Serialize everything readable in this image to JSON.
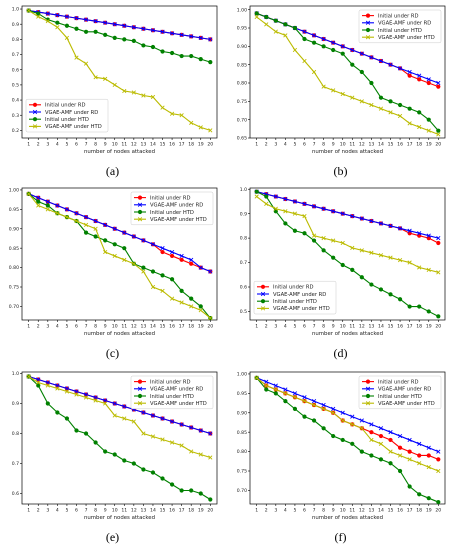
{
  "chart_data": [
    {
      "caption": "(a)",
      "type": "line",
      "xlabel": "number of nodes attacked",
      "x": [
        1,
        2,
        3,
        4,
        5,
        6,
        7,
        8,
        9,
        10,
        11,
        12,
        13,
        14,
        15,
        16,
        17,
        18,
        19,
        20
      ],
      "ylim": [
        0.15,
        1.02
      ],
      "yticks": [
        "0.2",
        "0.3",
        "0.4",
        "0.5",
        "0.6",
        "0.7",
        "0.8",
        "0.9",
        "1.0"
      ],
      "legend_position": "lower-left",
      "series": [
        {
          "name": "Initial under RD",
          "color": "#ff0000",
          "marker": "circle",
          "values": [
            0.99,
            0.98,
            0.97,
            0.96,
            0.95,
            0.94,
            0.93,
            0.92,
            0.91,
            0.9,
            0.89,
            0.88,
            0.87,
            0.86,
            0.85,
            0.84,
            0.83,
            0.82,
            0.81,
            0.8
          ]
        },
        {
          "name": "VGAE-AMF under RD",
          "color": "#0000ff",
          "marker": "x",
          "values": [
            0.99,
            0.98,
            0.97,
            0.96,
            0.95,
            0.94,
            0.93,
            0.92,
            0.91,
            0.9,
            0.89,
            0.88,
            0.87,
            0.86,
            0.85,
            0.84,
            0.83,
            0.82,
            0.81,
            0.8
          ]
        },
        {
          "name": "Initial under HTD",
          "color": "#008000",
          "marker": "circle",
          "values": [
            0.99,
            0.97,
            0.93,
            0.91,
            0.89,
            0.87,
            0.85,
            0.85,
            0.83,
            0.81,
            0.8,
            0.79,
            0.76,
            0.75,
            0.72,
            0.71,
            0.69,
            0.69,
            0.67,
            0.65
          ]
        },
        {
          "name": "VGAE-AMF under HTD",
          "color": "#bbbb00",
          "marker": "x",
          "values": [
            0.99,
            0.95,
            0.92,
            0.88,
            0.81,
            0.68,
            0.64,
            0.55,
            0.54,
            0.5,
            0.46,
            0.45,
            0.43,
            0.42,
            0.35,
            0.31,
            0.3,
            0.25,
            0.22,
            0.2
          ]
        }
      ]
    },
    {
      "caption": "(b)",
      "type": "line",
      "xlabel": "number of nodes attacked",
      "x": [
        1,
        2,
        3,
        4,
        5,
        6,
        7,
        8,
        9,
        10,
        11,
        12,
        13,
        14,
        15,
        16,
        17,
        18,
        19,
        20
      ],
      "ylim": [
        0.65,
        1.01
      ],
      "yticks": [
        "0.65",
        "0.70",
        "0.75",
        "0.80",
        "0.85",
        "0.90",
        "0.95",
        "1.00"
      ],
      "legend_position": "top-right",
      "series": [
        {
          "name": "Initial under RD",
          "color": "#ff0000",
          "marker": "circle",
          "values": [
            0.99,
            0.98,
            0.97,
            0.96,
            0.95,
            0.94,
            0.93,
            0.92,
            0.91,
            0.9,
            0.89,
            0.88,
            0.87,
            0.86,
            0.85,
            0.84,
            0.82,
            0.81,
            0.8,
            0.79
          ]
        },
        {
          "name": "VGAE-AMF under RD",
          "color": "#0000ff",
          "marker": "x",
          "values": [
            0.99,
            0.98,
            0.97,
            0.96,
            0.95,
            0.94,
            0.93,
            0.92,
            0.91,
            0.9,
            0.89,
            0.88,
            0.87,
            0.86,
            0.85,
            0.84,
            0.83,
            0.82,
            0.81,
            0.8
          ]
        },
        {
          "name": "Initial under HTD",
          "color": "#008000",
          "marker": "circle",
          "values": [
            0.99,
            0.98,
            0.97,
            0.96,
            0.95,
            0.92,
            0.91,
            0.9,
            0.89,
            0.88,
            0.85,
            0.83,
            0.8,
            0.76,
            0.75,
            0.74,
            0.73,
            0.72,
            0.7,
            0.67
          ]
        },
        {
          "name": "VGAE-AMF under HTD",
          "color": "#bbbb00",
          "marker": "x",
          "values": [
            0.98,
            0.96,
            0.94,
            0.93,
            0.89,
            0.86,
            0.83,
            0.79,
            0.78,
            0.77,
            0.76,
            0.75,
            0.74,
            0.73,
            0.72,
            0.71,
            0.69,
            0.68,
            0.67,
            0.66
          ]
        }
      ]
    },
    {
      "caption": "(c)",
      "type": "line",
      "xlabel": "number of nodes attacked",
      "x": [
        1,
        2,
        3,
        4,
        5,
        6,
        7,
        8,
        9,
        10,
        11,
        12,
        13,
        14,
        15,
        16,
        17,
        18,
        19,
        20
      ],
      "ylim": [
        0.665,
        1.005
      ],
      "yticks": [
        "0.70",
        "0.75",
        "0.80",
        "0.85",
        "0.90",
        "0.95",
        "1.00"
      ],
      "legend_position": "top-right",
      "series": [
        {
          "name": "Initial under RD",
          "color": "#ff0000",
          "marker": "circle",
          "values": [
            0.99,
            0.98,
            0.97,
            0.96,
            0.95,
            0.94,
            0.93,
            0.92,
            0.91,
            0.9,
            0.89,
            0.88,
            0.87,
            0.86,
            0.84,
            0.83,
            0.82,
            0.81,
            0.8,
            0.79
          ]
        },
        {
          "name": "VGAE-AMF under RD",
          "color": "#0000ff",
          "marker": "x",
          "values": [
            0.99,
            0.98,
            0.97,
            0.96,
            0.95,
            0.94,
            0.93,
            0.92,
            0.91,
            0.9,
            0.89,
            0.88,
            0.87,
            0.86,
            0.85,
            0.84,
            0.83,
            0.82,
            0.8,
            0.79
          ]
        },
        {
          "name": "Initial under HTD",
          "color": "#008000",
          "marker": "circle",
          "values": [
            0.99,
            0.97,
            0.96,
            0.94,
            0.93,
            0.92,
            0.89,
            0.88,
            0.87,
            0.86,
            0.85,
            0.81,
            0.8,
            0.79,
            0.78,
            0.77,
            0.74,
            0.72,
            0.7,
            0.67
          ]
        },
        {
          "name": "VGAE-AMF under HTD",
          "color": "#bbbb00",
          "marker": "x",
          "values": [
            0.99,
            0.96,
            0.95,
            0.94,
            0.93,
            0.92,
            0.91,
            0.9,
            0.84,
            0.83,
            0.82,
            0.81,
            0.79,
            0.75,
            0.74,
            0.72,
            0.71,
            0.7,
            0.69,
            0.67
          ]
        }
      ]
    },
    {
      "caption": "(d)",
      "type": "line",
      "xlabel": "number of nodes attacked",
      "x": [
        1,
        2,
        3,
        4,
        5,
        6,
        7,
        8,
        9,
        10,
        11,
        12,
        13,
        14,
        15,
        16,
        17,
        18,
        19,
        20
      ],
      "ylim": [
        0.465,
        1.005
      ],
      "yticks": [
        "0.5",
        "0.6",
        "0.7",
        "0.8",
        "0.9",
        "1.0"
      ],
      "legend_position": "lower-left",
      "series": [
        {
          "name": "Initial under RD",
          "color": "#ff0000",
          "marker": "circle",
          "values": [
            0.99,
            0.98,
            0.97,
            0.96,
            0.95,
            0.94,
            0.93,
            0.92,
            0.91,
            0.9,
            0.89,
            0.88,
            0.87,
            0.86,
            0.85,
            0.84,
            0.82,
            0.81,
            0.8,
            0.78
          ]
        },
        {
          "name": "VGAE-AMF under RD",
          "color": "#0000ff",
          "marker": "x",
          "values": [
            0.99,
            0.98,
            0.97,
            0.96,
            0.95,
            0.94,
            0.93,
            0.92,
            0.91,
            0.9,
            0.89,
            0.88,
            0.87,
            0.86,
            0.85,
            0.84,
            0.83,
            0.82,
            0.81,
            0.8
          ]
        },
        {
          "name": "Initial under HTD",
          "color": "#008000",
          "marker": "circle",
          "values": [
            0.99,
            0.97,
            0.91,
            0.86,
            0.83,
            0.82,
            0.79,
            0.75,
            0.72,
            0.69,
            0.67,
            0.64,
            0.61,
            0.59,
            0.57,
            0.55,
            0.52,
            0.52,
            0.5,
            0.48
          ]
        },
        {
          "name": "VGAE-AMF under HTD",
          "color": "#bbbb00",
          "marker": "x",
          "values": [
            0.97,
            0.94,
            0.92,
            0.91,
            0.9,
            0.89,
            0.81,
            0.8,
            0.79,
            0.78,
            0.76,
            0.75,
            0.74,
            0.73,
            0.72,
            0.71,
            0.7,
            0.68,
            0.67,
            0.66
          ]
        }
      ]
    },
    {
      "caption": "(e)",
      "type": "line",
      "xlabel": "number of nodes attacked",
      "x": [
        1,
        2,
        3,
        4,
        5,
        6,
        7,
        8,
        9,
        10,
        11,
        12,
        13,
        14,
        15,
        16,
        17,
        18,
        19,
        20
      ],
      "ylim": [
        0.565,
        1.005
      ],
      "yticks": [
        "0.6",
        "0.7",
        "0.8",
        "0.9",
        "1.0"
      ],
      "legend_position": "top-right",
      "series": [
        {
          "name": "Initial under RD",
          "color": "#ff0000",
          "marker": "circle",
          "values": [
            0.99,
            0.98,
            0.97,
            0.96,
            0.95,
            0.94,
            0.93,
            0.92,
            0.91,
            0.9,
            0.89,
            0.88,
            0.87,
            0.86,
            0.85,
            0.84,
            0.83,
            0.82,
            0.81,
            0.8
          ]
        },
        {
          "name": "VGAE-AMF under RD",
          "color": "#0000ff",
          "marker": "x",
          "values": [
            0.99,
            0.98,
            0.97,
            0.96,
            0.95,
            0.94,
            0.93,
            0.92,
            0.91,
            0.9,
            0.89,
            0.88,
            0.87,
            0.86,
            0.85,
            0.84,
            0.83,
            0.82,
            0.81,
            0.8
          ]
        },
        {
          "name": "Initial under HTD",
          "color": "#008000",
          "marker": "circle",
          "values": [
            0.99,
            0.96,
            0.9,
            0.87,
            0.85,
            0.81,
            0.8,
            0.77,
            0.74,
            0.73,
            0.71,
            0.7,
            0.68,
            0.67,
            0.65,
            0.63,
            0.61,
            0.61,
            0.6,
            0.58
          ]
        },
        {
          "name": "VGAE-AMF under HTD",
          "color": "#bbbb00",
          "marker": "x",
          "values": [
            0.99,
            0.97,
            0.96,
            0.95,
            0.94,
            0.93,
            0.92,
            0.91,
            0.9,
            0.86,
            0.85,
            0.84,
            0.8,
            0.79,
            0.78,
            0.77,
            0.76,
            0.74,
            0.73,
            0.72
          ]
        }
      ]
    },
    {
      "caption": "(f)",
      "type": "line",
      "xlabel": "number of nodes attacked",
      "x": [
        1,
        2,
        3,
        4,
        5,
        6,
        7,
        8,
        9,
        10,
        11,
        12,
        13,
        14,
        15,
        16,
        17,
        18,
        19,
        20
      ],
      "ylim": [
        0.665,
        1.005
      ],
      "yticks": [
        "0.70",
        "0.75",
        "0.80",
        "0.85",
        "0.90",
        "0.95",
        "1.00"
      ],
      "legend_position": "top-right",
      "series": [
        {
          "name": "Initial under RD",
          "color": "#ff0000",
          "marker": "circle",
          "values": [
            0.99,
            0.97,
            0.96,
            0.95,
            0.94,
            0.93,
            0.92,
            0.91,
            0.9,
            0.88,
            0.87,
            0.86,
            0.85,
            0.84,
            0.83,
            0.81,
            0.8,
            0.79,
            0.79,
            0.78
          ]
        },
        {
          "name": "VGAE-AMF under RD",
          "color": "#0000ff",
          "marker": "x",
          "values": [
            0.99,
            0.98,
            0.97,
            0.96,
            0.95,
            0.94,
            0.93,
            0.92,
            0.91,
            0.9,
            0.89,
            0.88,
            0.87,
            0.86,
            0.85,
            0.84,
            0.83,
            0.82,
            0.81,
            0.8
          ]
        },
        {
          "name": "Initial under HTD",
          "color": "#008000",
          "marker": "circle",
          "values": [
            0.99,
            0.96,
            0.95,
            0.93,
            0.91,
            0.89,
            0.88,
            0.86,
            0.84,
            0.83,
            0.82,
            0.8,
            0.79,
            0.78,
            0.77,
            0.75,
            0.71,
            0.69,
            0.68,
            0.67
          ]
        },
        {
          "name": "VGAE-AMF under HTD",
          "color": "#bbbb00",
          "marker": "x",
          "values": [
            0.99,
            0.97,
            0.96,
            0.95,
            0.94,
            0.93,
            0.92,
            0.91,
            0.9,
            0.88,
            0.87,
            0.86,
            0.83,
            0.82,
            0.8,
            0.79,
            0.78,
            0.77,
            0.76,
            0.75
          ]
        }
      ]
    }
  ]
}
